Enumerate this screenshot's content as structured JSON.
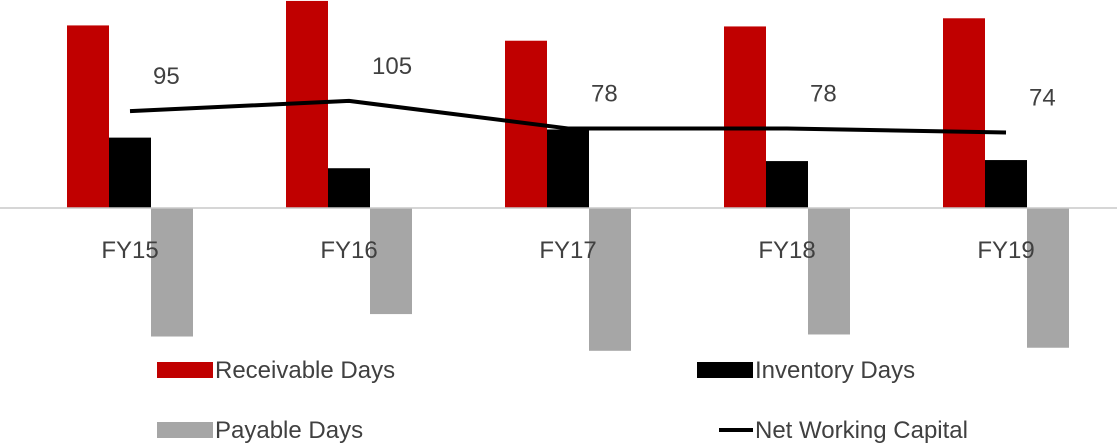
{
  "chart_data": {
    "type": "bar",
    "categories": [
      "FY15",
      "FY16",
      "FY17",
      "FY18",
      "FY19"
    ],
    "series": [
      {
        "name": "Receivable Days",
        "kind": "bar",
        "color": "#c00000",
        "values": [
          179,
          203,
          164,
          178,
          186
        ]
      },
      {
        "name": "Inventory Days",
        "kind": "bar",
        "color": "#000000",
        "values": [
          69,
          39,
          77,
          46,
          47
        ]
      },
      {
        "name": "Payable Days",
        "kind": "bar",
        "color": "#a6a6a6",
        "values": [
          -126,
          -104,
          -140,
          -124,
          -137
        ]
      },
      {
        "name": "Net Working Capital",
        "kind": "line",
        "color": "#000000",
        "values": [
          95,
          105,
          78,
          78,
          74
        ]
      }
    ],
    "data_labels": [
      "95",
      "105",
      "78",
      "78",
      "74"
    ],
    "legend": {
      "position": "bottom",
      "items": [
        "Receivable Days",
        "Inventory Days",
        "Payable Days",
        "Net Working Capital"
      ]
    },
    "ylim": [
      -196,
      196
    ],
    "grid": false
  }
}
